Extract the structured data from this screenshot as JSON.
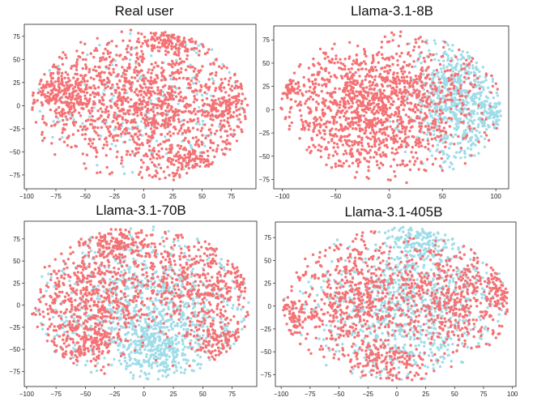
{
  "chart_data": [
    {
      "type": "scatter",
      "title": "Real user",
      "xticks": [
        "−100",
        "−75",
        "−50",
        "−25",
        "0",
        "25",
        "50",
        "75"
      ],
      "yticks": [
        "−75",
        "−50",
        "−25",
        "0",
        "25",
        "50",
        "75"
      ],
      "xlim": [
        -102,
        96
      ],
      "ylim": [
        -90,
        88
      ],
      "series": [
        {
          "color": "#f47174",
          "clusters": [
            {
              "cx": -5,
              "cy": 5,
              "sx": 45,
              "sy": 35,
              "n": 1300,
              "seed": 11
            },
            {
              "cx": -70,
              "cy": 15,
              "sx": 15,
              "sy": 15,
              "n": 200,
              "seed": 12
            },
            {
              "cx": 40,
              "cy": -60,
              "sx": 20,
              "sy": 12,
              "n": 180,
              "seed": 13
            },
            {
              "cx": 25,
              "cy": 70,
              "sx": 15,
              "sy": 8,
              "n": 120,
              "seed": 14
            },
            {
              "cx": 75,
              "cy": 0,
              "sx": 10,
              "sy": 20,
              "n": 140,
              "seed": 15
            }
          ]
        },
        {
          "color": "#9edce8",
          "clusters": [
            {
              "cx": 10,
              "cy": 0,
              "sx": 50,
              "sy": 40,
              "n": 250,
              "seed": 16
            }
          ]
        }
      ],
      "draw_order": [
        1,
        0
      ]
    },
    {
      "type": "scatter",
      "title": "Llama-3.1-8B",
      "xticks": [
        "−100",
        "−50",
        "0",
        "50",
        "100"
      ],
      "yticks": [
        "−75",
        "−50",
        "−25",
        "0",
        "25",
        "50",
        "75"
      ],
      "xlim": [
        -108,
        112
      ],
      "ylim": [
        -85,
        90
      ],
      "series": [
        {
          "color": "#9edce8",
          "clusters": [
            {
              "cx": 65,
              "cy": 10,
              "sx": 22,
              "sy": 35,
              "n": 700,
              "seed": 21
            },
            {
              "cx": 95,
              "cy": -5,
              "sx": 6,
              "sy": 8,
              "n": 60,
              "seed": 22
            }
          ]
        },
        {
          "color": "#f47174",
          "clusters": [
            {
              "cx": -25,
              "cy": 0,
              "sx": 40,
              "sy": 38,
              "n": 1300,
              "seed": 23
            },
            {
              "cx": -95,
              "cy": 20,
              "sx": 5,
              "sy": 8,
              "n": 60,
              "seed": 24
            },
            {
              "cx": 40,
              "cy": 10,
              "sx": 30,
              "sy": 35,
              "n": 250,
              "seed": 25
            }
          ]
        }
      ],
      "draw_order": [
        0,
        1
      ]
    },
    {
      "type": "scatter",
      "title": "Llama-3.1-70B",
      "xticks": [
        "−100",
        "−75",
        "−50",
        "−25",
        "0",
        "25",
        "50",
        "75"
      ],
      "yticks": [
        "−75",
        "−50",
        "−25",
        "0",
        "25",
        "50",
        "75"
      ],
      "xlim": [
        -102,
        96
      ],
      "ylim": [
        -92,
        95
      ],
      "series": [
        {
          "color": "#9edce8",
          "clusters": [
            {
              "cx": 5,
              "cy": 0,
              "sx": 45,
              "sy": 40,
              "n": 900,
              "seed": 31
            },
            {
              "cx": 10,
              "cy": -50,
              "sx": 20,
              "sy": 20,
              "n": 300,
              "seed": 32
            }
          ]
        },
        {
          "color": "#f47174",
          "clusters": [
            {
              "cx": -45,
              "cy": 15,
              "sx": 28,
              "sy": 30,
              "n": 600,
              "seed": 33
            },
            {
              "cx": 45,
              "cy": 25,
              "sx": 25,
              "sy": 30,
              "n": 450,
              "seed": 34
            },
            {
              "cx": -20,
              "cy": 70,
              "sx": 15,
              "sy": 10,
              "n": 150,
              "seed": 35
            },
            {
              "cx": -50,
              "cy": -40,
              "sx": 18,
              "sy": 15,
              "n": 200,
              "seed": 36
            },
            {
              "cx": 65,
              "cy": -40,
              "sx": 12,
              "sy": 12,
              "n": 150,
              "seed": 37
            },
            {
              "cx": 85,
              "cy": 30,
              "sx": 5,
              "sy": 8,
              "n": 50,
              "seed": 38
            }
          ]
        }
      ],
      "draw_order": [
        0,
        1
      ]
    },
    {
      "type": "scatter",
      "title": "Llama-3.1-405B",
      "xticks": [
        "−100",
        "−75",
        "−50",
        "−25",
        "0",
        "25",
        "50",
        "75",
        "100"
      ],
      "yticks": [
        "−75",
        "−50",
        "−25",
        "0",
        "25",
        "50",
        "75"
      ],
      "xlim": [
        -105,
        103
      ],
      "ylim": [
        -88,
        92
      ],
      "series": [
        {
          "color": "#9edce8",
          "clusters": [
            {
              "cx": 10,
              "cy": 0,
              "sx": 40,
              "sy": 42,
              "n": 900,
              "seed": 41
            },
            {
              "cx": 20,
              "cy": 70,
              "sx": 15,
              "sy": 12,
              "n": 150,
              "seed": 42
            }
          ]
        },
        {
          "color": "#f47174",
          "clusters": [
            {
              "cx": -35,
              "cy": 10,
              "sx": 30,
              "sy": 35,
              "n": 650,
              "seed": 43
            },
            {
              "cx": 50,
              "cy": 10,
              "sx": 25,
              "sy": 35,
              "n": 500,
              "seed": 44
            },
            {
              "cx": -10,
              "cy": -60,
              "sx": 18,
              "sy": 12,
              "n": 150,
              "seed": 45
            },
            {
              "cx": -90,
              "cy": -10,
              "sx": 8,
              "sy": 10,
              "n": 80,
              "seed": 46
            },
            {
              "cx": 90,
              "cy": 20,
              "sx": 6,
              "sy": 10,
              "n": 80,
              "seed": 47
            }
          ]
        }
      ],
      "draw_order": [
        0,
        1
      ]
    }
  ]
}
